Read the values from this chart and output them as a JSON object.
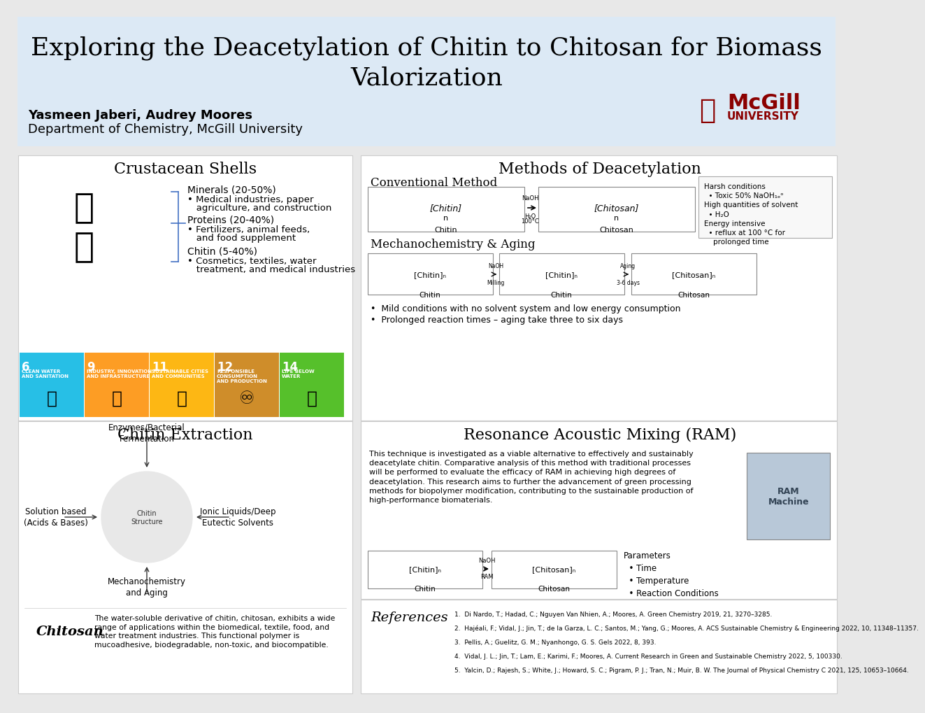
{
  "title": "Exploring the Deacetylation of Chitin to Chitosan for Biomass\nValorization",
  "authors": "Yasmeen Jaberi, Audrey Moores",
  "department": "Department of Chemistry, McGill University",
  "header_bg": "#dce9f5",
  "white_bg": "#ffffff",
  "outer_bg": "#f0f0f0",
  "panel1_title": "Crustacean Shells",
  "panel1_content": [
    "Minerals (20-50%)",
    "  • Medical industries, paper\n    agriculture, and construction",
    "",
    "Proteins (20-40%)",
    "  • Fertilizers, animal feeds,\n    and food supplement",
    "",
    "Chitin (5-40%)",
    "  • Cosmetics, textiles, water\n    treatment, and medical industries"
  ],
  "panel2_title": "Methods of Deacetylation",
  "panel2_sub1": "Conventional Method",
  "panel2_sub1_notes": "Harsh conditions\n  • Toxic 50% NaOH₁ₑᵒ\nHigh quantities of solvent\n  • H₂O\nEnergy intensive\n  • reflux at 100 °C for\n    prolonged time",
  "panel2_sub2": "Mechanochemistry & Aging",
  "panel2_sub2_bullets": [
    "•  Mild conditions with no solvent system and low energy consumption",
    "•  Prolonged reaction times – aging take three to six days"
  ],
  "panel3_title": "Chitin Extraction",
  "panel3_methods": [
    "Enzymes/Bacterial\nFermentation",
    "Ionic Liquids/Deep\nEutectic Solvents",
    "Mechanochemistry\nand Aging",
    "Solution based\n(Acids & Bases)"
  ],
  "panel3_chitosan_text": "The water-soluble derivative of chitin, chitosan, exhibits a wide\nrange of applications within the biomedical, textile, food, and\nwater treatment industries. This functional polymer is\nmucoadhesive, biodegradable, non-toxic, and biocompatible.",
  "panel4_title": "Resonance Acoustic Mixing (RAM)",
  "panel4_text": "This technique is investigated as a viable alternative to effectively and sustainably\ndeacetylate chitin. Comparative analysis of this method with traditional processes\nwill be performed to evaluate the efficacy of RAM in achieving high degrees of\ndeacetylation. This research aims to further the advancement of green processing\nmethods for biopolymer modification, contributing to the sustainable production of\nhigh-performance biomaterials.",
  "panel4_params": "Parameters\n  • Time\n  • Temperature\n  • Reaction Conditions",
  "references_title": "References",
  "references": [
    "1.  Di Nardo, T.; Hadad, C.; Nguyen Van Nhien, A.; Moores, A. Green Chemistry 2019, 21, 3270–3285.",
    "2.  Hajéali, F.; Vidal, J.; Jin, T.; de la Garza, L. C.; Santos, M.; Yang, G.; Moores, A. ACS Sustainable Chemistry & Engineering 2022, 10, 11348–11357.",
    "3.  Pellis, A.; Guelitz, G. M.; Nyanhongo, G. S. Gels 2022, 8, 393.",
    "4.  Vidal, J. L.; Jin, T.; Lam, E.; Karimi, F.; Moores, A. Current Research in Green and Sustainable Chemistry 2022, 5, 100330.",
    "5.  Yalcin, D.; Rajesh, S.; White, J.; Howard, S. C.; Pigram, P. J.; Tran, N.; Muir, B. W. The Journal of Physical Chemistry C 2021, 125, 10653–10664."
  ],
  "sdg_colors": [
    "#27BFE6",
    "#FD9D24",
    "#FDB714",
    "#CF8D2A",
    "#56C02B"
  ],
  "sdg_numbers": [
    "6",
    "9",
    "11",
    "12",
    "14"
  ],
  "sdg_titles": [
    "CLEAN WATER\nAND SANITATION",
    "INDUSTRY, INNOVATION\nAND INFRASTRUCTURE",
    "SUSTAINABLE CITIES\nAND COMMUNITIES",
    "RESPONSIBLE\nCONSUMPTION\nAND PRODUCTION",
    "LIFE BELOW\nWATER"
  ]
}
